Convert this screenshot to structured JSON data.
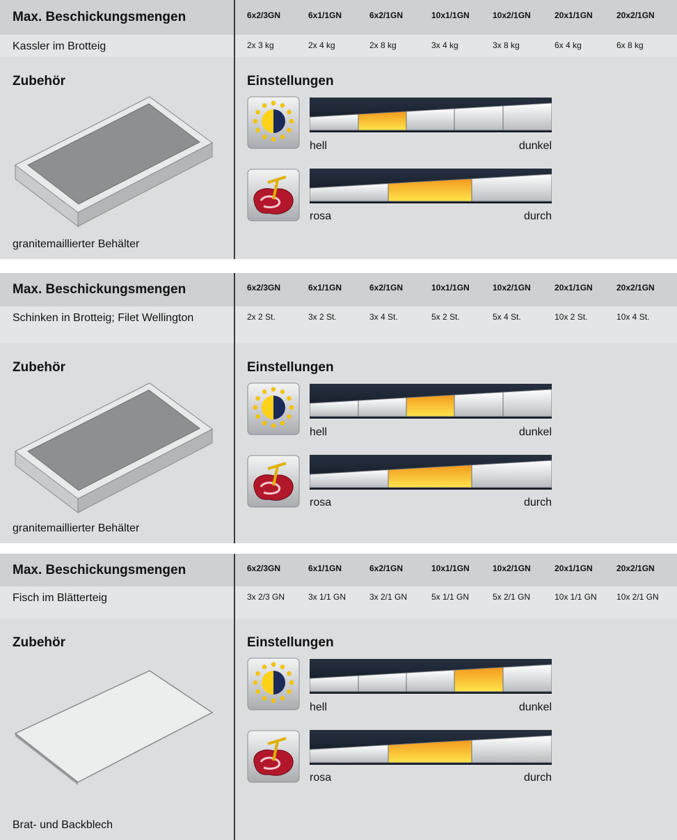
{
  "blocks": [
    {
      "header": "Max. Beschickungsmengen",
      "columns": [
        "6x2/3GN",
        "6x1/1GN",
        "6x2/1GN",
        "10x1/1GN",
        "10x2/1GN",
        "20x1/1GN",
        "20x2/1GN"
      ],
      "product": "Kassler im Brotteig",
      "quantities": [
        "2x 3 kg",
        "2x 4 kg",
        "2x 8 kg",
        "3x 4 kg",
        "3x 8 kg",
        "6x 4 kg",
        "6x 8 kg"
      ],
      "accessory_title": "Zubehör",
      "settings_title": "Einstellungen",
      "accessory": "granitemaillierter Behälter",
      "browning": {
        "level": 2,
        "low": "hell",
        "high": "dunkel"
      },
      "doneness": {
        "level": 2,
        "low": "rosa",
        "high": "durch"
      }
    },
    {
      "header": "Max. Beschickungsmengen",
      "columns": [
        "6x2/3GN",
        "6x1/1GN",
        "6x2/1GN",
        "10x1/1GN",
        "10x2/1GN",
        "20x1/1GN",
        "20x2/1GN"
      ],
      "product": "Schinken in Brotteig; Filet Wellington",
      "quantities": [
        "2x 2 St.",
        "3x 2 St.",
        "3x 4 St.",
        "5x 2 St.",
        "5x 4 St.",
        "10x 2 St.",
        "10x 4 St."
      ],
      "accessory_title": "Zubehör",
      "settings_title": "Einstellungen",
      "accessory": "granitemaillierter Behälter",
      "browning": {
        "level": 3,
        "low": "hell",
        "high": "dunkel"
      },
      "doneness": {
        "level": 2,
        "low": "rosa",
        "high": "durch"
      }
    },
    {
      "header": "Max. Beschickungsmengen",
      "columns": [
        "6x2/3GN",
        "6x1/1GN",
        "6x2/1GN",
        "10x1/1GN",
        "10x2/1GN",
        "20x1/1GN",
        "20x2/1GN"
      ],
      "product": "Fisch im Blätterteig",
      "quantities": [
        "3x 2/3 GN",
        "3x 1/1 GN",
        "3x 2/1 GN",
        "5x 1/1 GN",
        "5x 2/1 GN",
        "10x 1/1 GN",
        "10x 2/1 GN"
      ],
      "accessory_title": "Zubehör",
      "settings_title": "Einstellungen",
      "accessory": "Brat- und Backblech",
      "browning": {
        "level": 4,
        "low": "hell",
        "high": "dunkel"
      },
      "doneness": {
        "level": 2,
        "low": "rosa",
        "high": "durch"
      }
    }
  ]
}
